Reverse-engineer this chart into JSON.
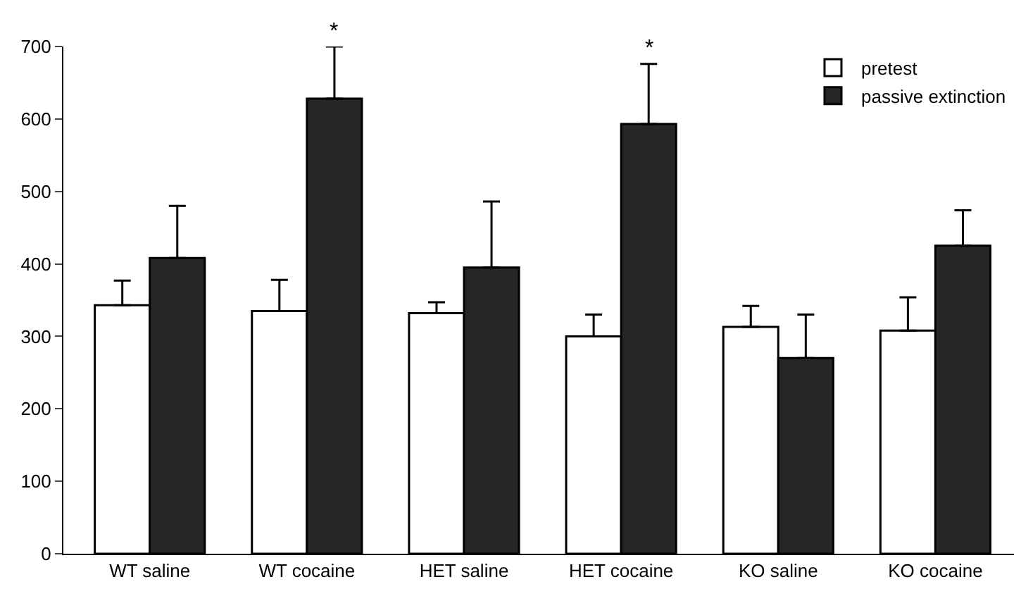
{
  "chart_data": {
    "type": "bar",
    "categories": [
      "WT saline",
      "WT cocaine",
      "HET saline",
      "HET cocaine",
      "KO saline",
      "KO cocaine"
    ],
    "series": [
      {
        "name": "pretest",
        "color": "#ffffff",
        "values": [
          343,
          335,
          332,
          300,
          313,
          308
        ],
        "errors": [
          [
            343,
            377
          ],
          [
            335,
            378
          ],
          [
            332,
            347
          ],
          [
            300,
            330
          ],
          [
            313,
            342
          ],
          [
            308,
            354
          ]
        ]
      },
      {
        "name": "passive extinction",
        "color": "#262626",
        "values": [
          408,
          628,
          395,
          593,
          270,
          425
        ],
        "errors": [
          [
            408,
            480
          ],
          [
            628,
            700
          ],
          [
            395,
            486
          ],
          [
            593,
            676
          ],
          [
            270,
            330
          ],
          [
            425,
            474
          ]
        ],
        "value_labels": [
          null,
          "*",
          null,
          "*",
          null,
          null
        ]
      }
    ],
    "ylim": [
      0,
      700
    ],
    "yticks": [
      0,
      100,
      200,
      300,
      400,
      500,
      600,
      700
    ],
    "grid": false,
    "legend": "top right"
  }
}
